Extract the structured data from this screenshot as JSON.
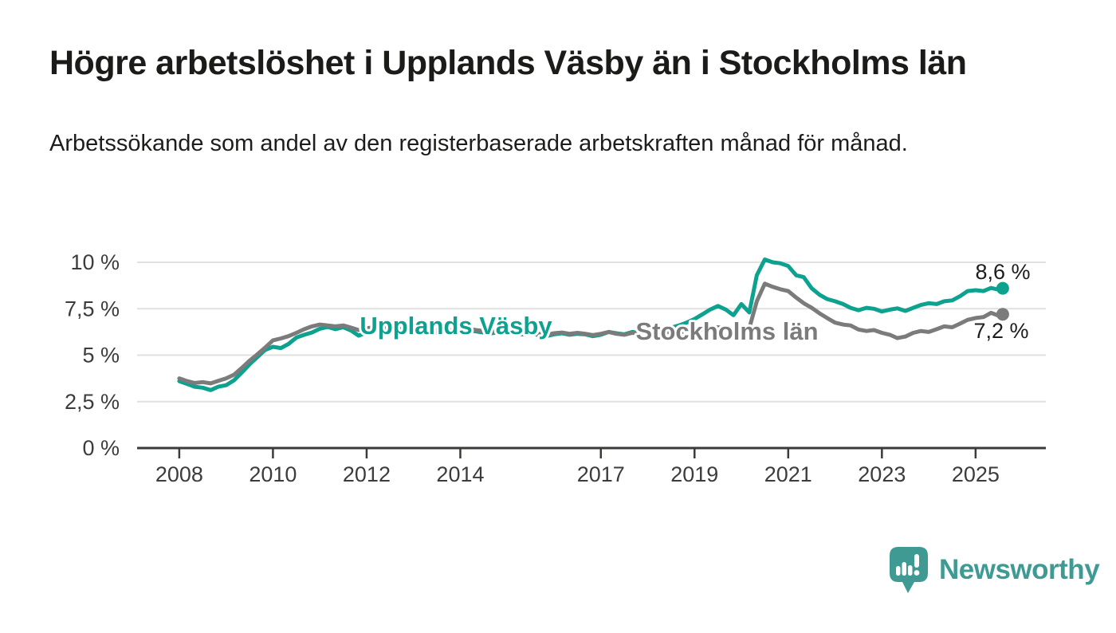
{
  "header": {
    "title": "Högre arbetslöshet i Upplands Väsby än i Stockholms län",
    "subtitle": "Arbetssökande som andel av den registerbaserade arbetskraften månad för månad."
  },
  "footer": {
    "brand": "Newsworthy",
    "logo_icon": "newsworthy-pin-barchart-icon",
    "brand_color": "#3f9a94"
  },
  "colors": {
    "background": "#ffffff",
    "title_text": "#1b1b1a",
    "axis": "#3b3b3a",
    "axis_text": "#3c3c3b",
    "grid": "#e1e1e1",
    "teal": "#0da18f",
    "gray": "#7b7b7b",
    "end_label_text": "#1d1d1b"
  },
  "chart_data": {
    "type": "line",
    "title": "Högre arbetslöshet i Upplands Väsby än i Stockholms län",
    "subtitle": "Arbetssökande som andel av den registerbaserade arbetskraften månad för månad.",
    "xlabel": "",
    "ylabel": "",
    "unit": "%",
    "grid": "horizontal-only",
    "legend_position": "inline-labels-on-lines",
    "x_range": [
      2007.1,
      2026.5
    ],
    "ylim": [
      0,
      10.7
    ],
    "y_ticks": [
      {
        "value": 0,
        "label": "0 %"
      },
      {
        "value": 2.5,
        "label": "2,5 %"
      },
      {
        "value": 5,
        "label": "5 %"
      },
      {
        "value": 7.5,
        "label": "7,5 %"
      },
      {
        "value": 10,
        "label": "10 %"
      }
    ],
    "x_ticks": [
      {
        "value": 2008,
        "label": "2008"
      },
      {
        "value": 2010,
        "label": "2010"
      },
      {
        "value": 2012,
        "label": "2012"
      },
      {
        "value": 2014,
        "label": "2014"
      },
      {
        "value": 2017,
        "label": "2017"
      },
      {
        "value": 2019,
        "label": "2019"
      },
      {
        "value": 2021,
        "label": "2021"
      },
      {
        "value": 2023,
        "label": "2023"
      },
      {
        "value": 2025,
        "label": "2025"
      }
    ],
    "x": [
      2008,
      2008.17,
      2008.33,
      2008.5,
      2008.67,
      2008.83,
      2009,
      2009.17,
      2009.33,
      2009.5,
      2009.67,
      2009.83,
      2010,
      2010.17,
      2010.33,
      2010.5,
      2010.67,
      2010.83,
      2011,
      2011.17,
      2011.33,
      2011.5,
      2011.67,
      2011.83,
      2012,
      2012.17,
      2012.33,
      2012.5,
      2012.67,
      2012.83,
      2013,
      2013.17,
      2013.33,
      2013.5,
      2013.67,
      2013.83,
      2014,
      2014.17,
      2014.33,
      2014.5,
      2014.67,
      2014.83,
      2015,
      2015.17,
      2015.33,
      2015.5,
      2015.67,
      2015.83,
      2016,
      2016.17,
      2016.33,
      2016.5,
      2016.67,
      2016.83,
      2017,
      2017.17,
      2017.33,
      2017.5,
      2017.67,
      2017.83,
      2018,
      2018.17,
      2018.33,
      2018.5,
      2018.67,
      2018.83,
      2019,
      2019.17,
      2019.33,
      2019.5,
      2019.67,
      2019.83,
      2020,
      2020.17,
      2020.33,
      2020.5,
      2020.67,
      2020.83,
      2021,
      2021.17,
      2021.33,
      2021.5,
      2021.67,
      2021.83,
      2022,
      2022.17,
      2022.33,
      2022.5,
      2022.67,
      2022.83,
      2023,
      2023.17,
      2023.33,
      2023.5,
      2023.67,
      2023.83,
      2024,
      2024.17,
      2024.33,
      2024.5,
      2024.67,
      2024.83,
      2025,
      2025.17,
      2025.33,
      2025.5,
      2025.58
    ],
    "series": [
      {
        "name": "Upplands Väsby",
        "color": "#0da18f",
        "end_label": "8,6 %",
        "end_value": 8.6,
        "values": [
          3.6,
          3.45,
          3.3,
          3.25,
          3.12,
          3.3,
          3.38,
          3.65,
          4.05,
          4.5,
          4.9,
          5.28,
          5.45,
          5.38,
          5.6,
          5.95,
          6.1,
          6.22,
          6.42,
          6.52,
          6.4,
          6.5,
          6.32,
          6.05,
          6.22,
          6.3,
          6.38,
          6.33,
          6.25,
          6.32,
          6.28,
          6.35,
          6.3,
          6.22,
          6.28,
          6.2,
          6.3,
          6.35,
          6.28,
          6.22,
          6.18,
          6.25,
          6.22,
          6.18,
          6.12,
          6.18,
          6.08,
          6.02,
          6.12,
          6.18,
          6.1,
          6.15,
          6.12,
          6.02,
          6.1,
          6.25,
          6.18,
          6.12,
          6.25,
          6.18,
          6.25,
          6.3,
          6.38,
          6.48,
          6.6,
          6.75,
          6.95,
          7.2,
          7.45,
          7.65,
          7.45,
          7.15,
          7.75,
          7.3,
          9.3,
          10.15,
          10.0,
          9.95,
          9.8,
          9.3,
          9.2,
          8.6,
          8.25,
          8.02,
          7.9,
          7.75,
          7.55,
          7.42,
          7.55,
          7.5,
          7.35,
          7.45,
          7.52,
          7.38,
          7.55,
          7.7,
          7.8,
          7.75,
          7.9,
          7.95,
          8.18,
          8.45,
          8.5,
          8.45,
          8.62,
          8.52,
          8.6
        ]
      },
      {
        "name": "Stockholms län",
        "color": "#7b7b7b",
        "end_label": "7,2 %",
        "end_value": 7.2,
        "values": [
          3.75,
          3.6,
          3.5,
          3.55,
          3.48,
          3.62,
          3.75,
          3.95,
          4.3,
          4.7,
          5.05,
          5.4,
          5.8,
          5.9,
          6.02,
          6.2,
          6.4,
          6.55,
          6.65,
          6.6,
          6.55,
          6.6,
          6.48,
          6.35,
          6.45,
          6.5,
          6.52,
          6.45,
          6.4,
          6.45,
          6.42,
          6.48,
          6.42,
          6.35,
          6.4,
          6.32,
          6.4,
          6.42,
          6.35,
          6.3,
          6.25,
          6.32,
          6.28,
          6.25,
          6.2,
          6.25,
          6.15,
          6.1,
          6.18,
          6.22,
          6.15,
          6.2,
          6.15,
          6.08,
          6.15,
          6.25,
          6.15,
          6.1,
          6.2,
          6.15,
          6.2,
          6.18,
          6.22,
          6.25,
          6.22,
          6.28,
          6.3,
          6.4,
          6.45,
          6.5,
          6.45,
          6.32,
          6.55,
          6.45,
          7.9,
          8.85,
          8.68,
          8.55,
          8.45,
          8.1,
          7.8,
          7.55,
          7.25,
          7.0,
          6.75,
          6.65,
          6.6,
          6.38,
          6.3,
          6.35,
          6.2,
          6.1,
          5.92,
          6.0,
          6.2,
          6.3,
          6.25,
          6.4,
          6.55,
          6.5,
          6.7,
          6.9,
          7.0,
          7.05,
          7.28,
          7.12,
          7.2
        ]
      }
    ]
  }
}
